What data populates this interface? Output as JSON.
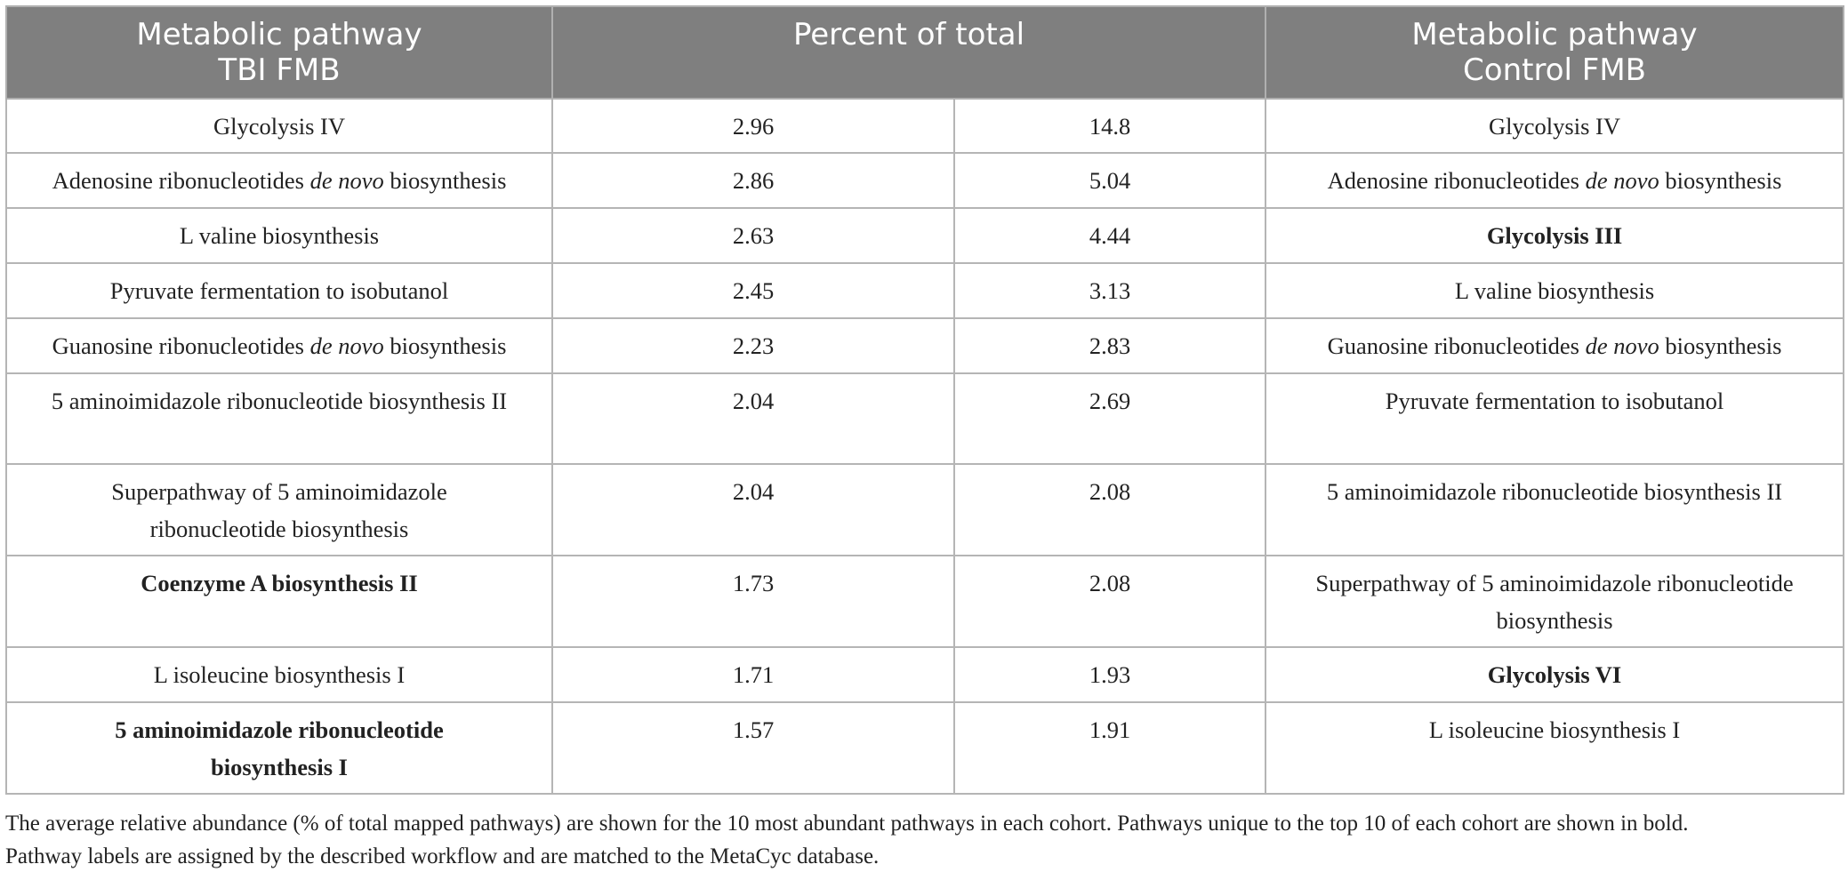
{
  "header": {
    "col1_line1": "Metabolic pathway",
    "col1_line2": "TBI FMB",
    "col2": "Percent of total",
    "col3_line1": "Metabolic pathway",
    "col3_line2": "Control FMB"
  },
  "rows": [
    {
      "tbi": "Glycolysis IV",
      "tbi_pct": "2.96",
      "ctrl_pct": "14.8",
      "ctrl": "Glycolysis IV",
      "height": 61
    },
    {
      "tbi_pre": "Adenosine ribonucleotides ",
      "tbi_it": "de novo",
      "tbi_post": " biosynthesis",
      "tbi_pct": "2.86",
      "ctrl_pct": "5.04",
      "ctrl_pre": "Adenosine ribonucleotides ",
      "ctrl_it": "de novo",
      "ctrl_post": " biosynthesis"
    },
    {
      "tbi": "L valine biosynthesis",
      "tbi_pct": "2.63",
      "ctrl_pct": "4.44",
      "ctrl": "Glycolysis III"
    },
    {
      "tbi": "Pyruvate fermentation to isobutanol",
      "tbi_pct": "2.45",
      "ctrl_pct": "3.13",
      "ctrl": "L valine biosynthesis"
    },
    {
      "tbi_pre": "Guanosine ribonucleotides ",
      "tbi_it": "de novo",
      "tbi_post": " biosynthesis",
      "tbi_pct": "2.23",
      "ctrl_pct": "2.83",
      "ctrl_pre": "Guanosine ribonucleotides ",
      "ctrl_it": "de novo",
      "ctrl_post": " biosynthesis"
    },
    {
      "tbi": "5 aminoimidazole ribonucleotide biosynthesis II",
      "tbi_pct": "2.04",
      "ctrl_pct": "2.69",
      "ctrl": "Pyruvate fermentation to isobutanol"
    },
    {
      "tbi": "Superpathway of 5 aminoimidazole ribonucleotide biosynthesis",
      "tbi_pct": "2.04",
      "ctrl_pct": "2.08",
      "ctrl": "5 aminoimidazole ribonucleotide biosynthesis II"
    },
    {
      "tbi": "Coenzyme A biosynthesis II",
      "tbi_pct": "1.73",
      "ctrl_pct": "2.08",
      "ctrl": "Superpathway of 5 aminoimidazole ribonucleotide biosynthesis"
    },
    {
      "tbi": "L isoleucine biosynthesis I",
      "tbi_pct": "1.71",
      "ctrl_pct": "1.93",
      "ctrl": "Glycolysis VI"
    },
    {
      "tbi": "5 aminoimidazole ribonucleotide biosynthesis I",
      "tbi_pct": "1.57",
      "ctrl_pct": "1.91",
      "ctrl": "L isoleucine biosynthesis I"
    }
  ],
  "caption": {
    "line1": "The average relative abundance (% of total mapped pathways) are shown for the 10 most abundant pathways in each cohort. Pathways unique to the top 10 of each cohort are shown in bold.",
    "line2": "Pathway labels are assigned by the described workflow and are matched to the MetaCyc database."
  }
}
